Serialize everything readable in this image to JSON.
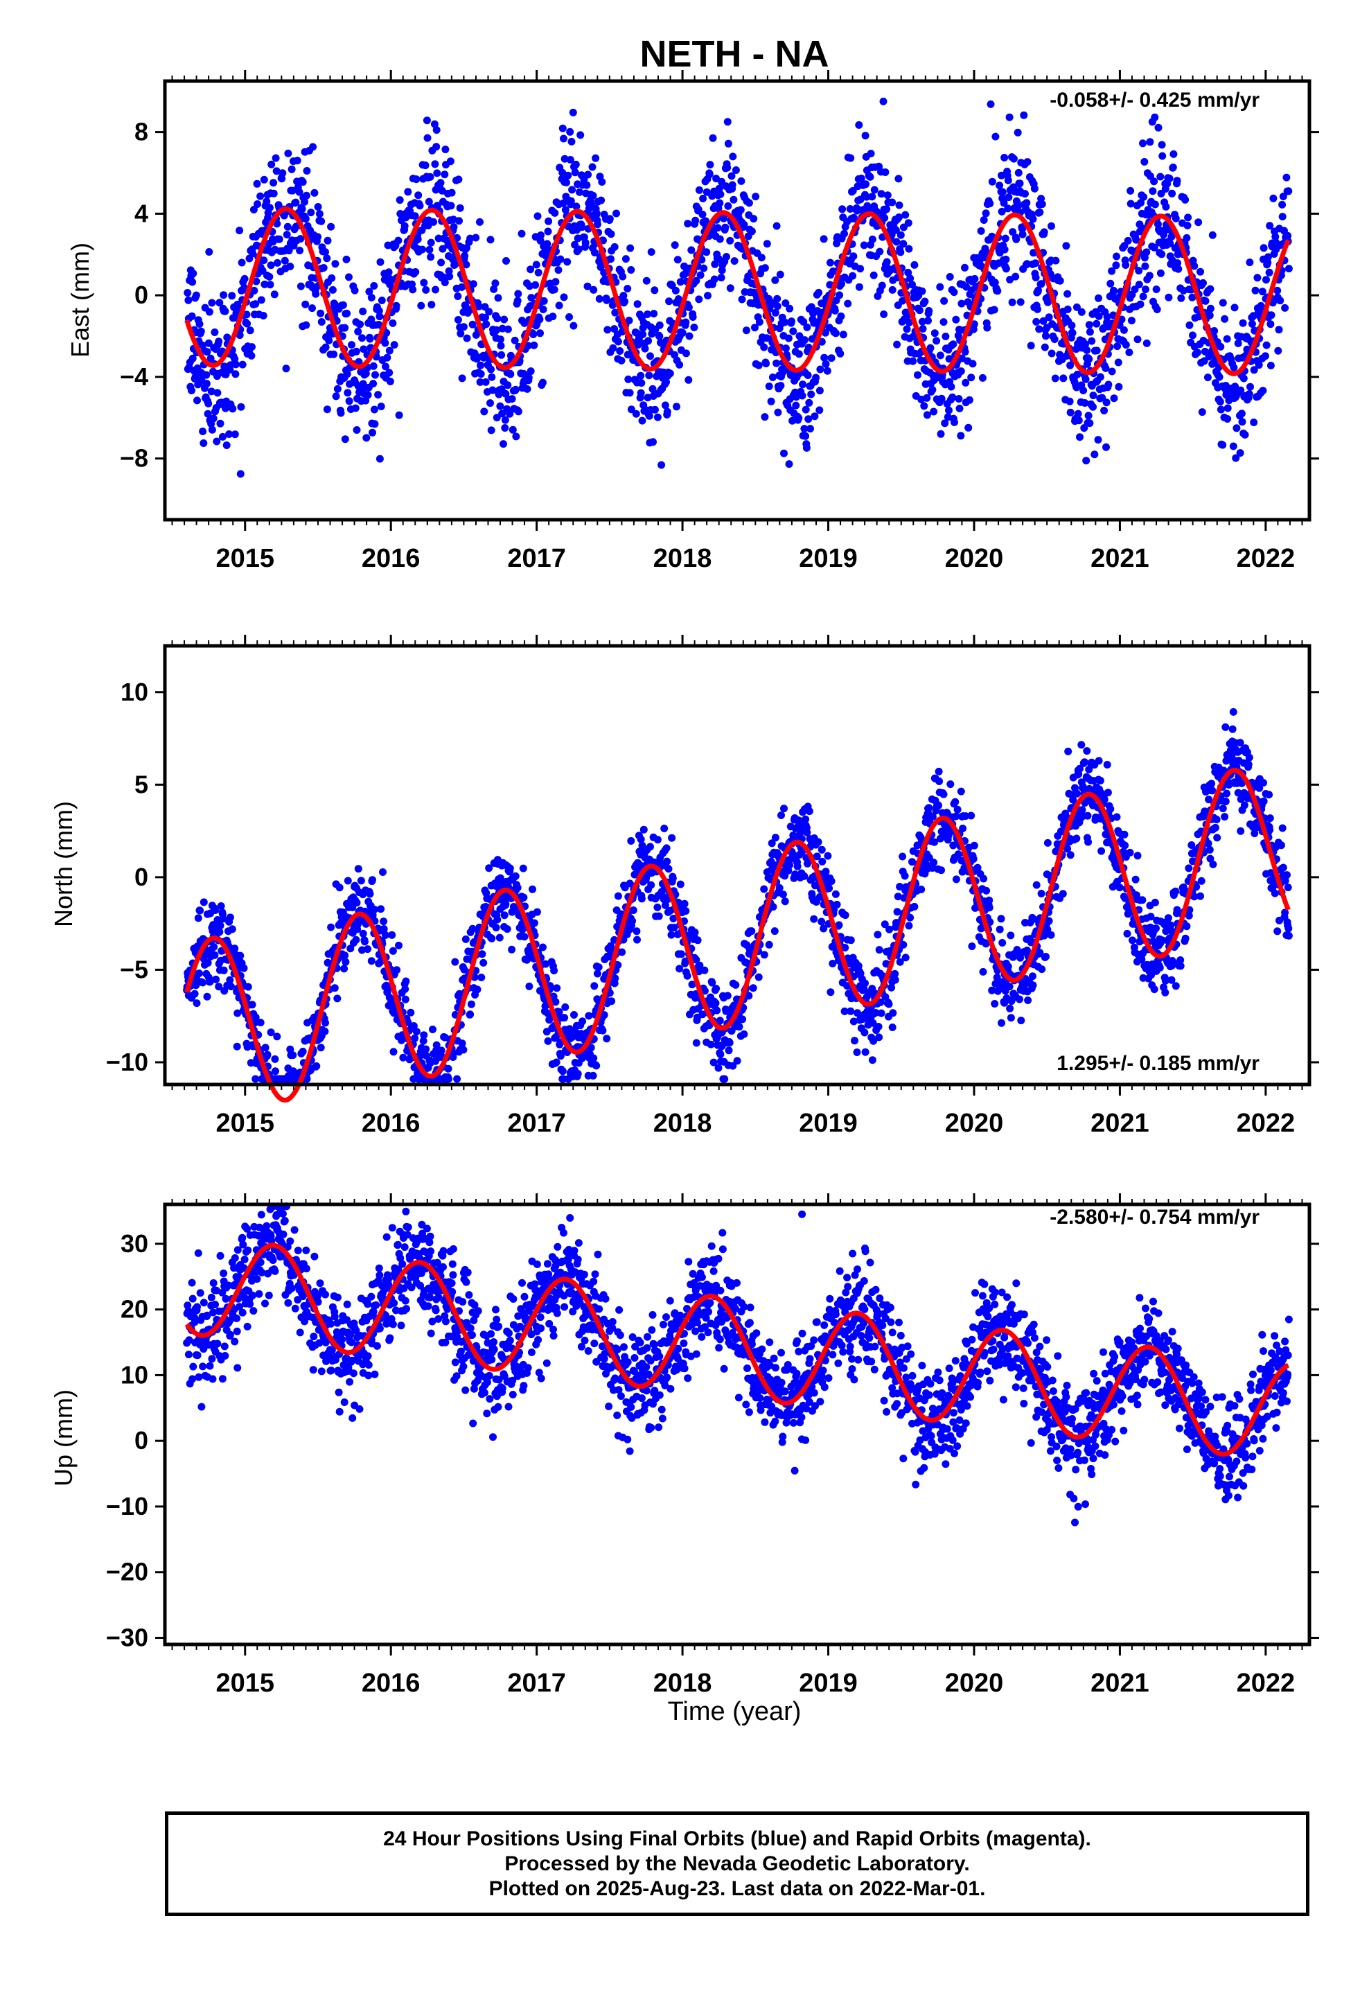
{
  "title": "NETH - NA",
  "chart_data": [
    {
      "type": "scatter",
      "panel": "east",
      "ylabel": "East (mm)",
      "xlim": [
        2014.45,
        2022.3
      ],
      "ylim": [
        -11,
        10.5
      ],
      "yticks": [
        8,
        4,
        0,
        -4,
        -8
      ],
      "ytick_labels": [
        "8",
        "4",
        "0",
        "−4",
        "−8"
      ],
      "xticks": [
        2015,
        2016,
        2017,
        2018,
        2019,
        2020,
        2021,
        2022
      ],
      "xtick_labels": [
        "2015",
        "2016",
        "2017",
        "2018",
        "2019",
        "2020",
        "2021",
        "2022"
      ],
      "rate_label": "-0.058+/- 0.425 mm/yr",
      "rate_position": "top-right",
      "data_range": [
        2014.6,
        2022.16
      ],
      "series": [
        {
          "color": "#0000ff",
          "kind": "daily_positions",
          "amplitude": 4.0,
          "phase": 0.28,
          "trend": -0.058,
          "offset": 0.2,
          "scatter": 1.9
        },
        {
          "color": "#ff0000",
          "kind": "model_fit",
          "amplitude": 3.85,
          "phase": 0.28,
          "trend": -0.058,
          "offset": 0.2
        }
      ]
    },
    {
      "type": "scatter",
      "panel": "north",
      "ylabel": "North (mm)",
      "xlim": [
        2014.45,
        2022.3
      ],
      "ylim": [
        -11.2,
        12.5
      ],
      "yticks": [
        10,
        5,
        0,
        -5,
        -10
      ],
      "ytick_labels": [
        "10",
        "5",
        "0",
        "−5",
        "−10"
      ],
      "xticks": [
        2015,
        2016,
        2017,
        2018,
        2019,
        2020,
        2021,
        2022
      ],
      "xtick_labels": [
        "2015",
        "2016",
        "2017",
        "2018",
        "2019",
        "2020",
        "2021",
        "2022"
      ],
      "rate_label": "1.295+/- 0.185 mm/yr",
      "rate_position": "bottom-right",
      "data_range": [
        2014.6,
        2022.16
      ],
      "series": [
        {
          "color": "#0000ff",
          "kind": "daily_positions",
          "amplitude": 4.7,
          "phase": -0.22,
          "trend": 1.295,
          "offset": -3.3,
          "scatter": 1.2
        },
        {
          "color": "#ff0000",
          "kind": "model_fit",
          "amplitude": 4.7,
          "phase": -0.22,
          "trend": 1.295,
          "offset": -3.3
        }
      ]
    },
    {
      "type": "scatter",
      "panel": "up",
      "ylabel": "Up (mm)",
      "xlabel": "Time (year)",
      "xlim": [
        2014.45,
        2022.3
      ],
      "ylim": [
        -31,
        36
      ],
      "yticks": [
        30,
        20,
        10,
        0,
        -10,
        -20,
        -30
      ],
      "ytick_labels": [
        "30",
        "20",
        "10",
        "0",
        "−10",
        "−20",
        "−30"
      ],
      "xticks": [
        2015,
        2016,
        2017,
        2018,
        2019,
        2020,
        2021,
        2022
      ],
      "xtick_labels": [
        "2015",
        "2016",
        "2017",
        "2018",
        "2019",
        "2020",
        "2021",
        "2022"
      ],
      "rate_label": "-2.580+/- 0.754 mm/yr",
      "rate_position": "top-right",
      "data_range": [
        2014.6,
        2022.16
      ],
      "outliers": [
        [
          2018.82,
          34.5
        ]
      ],
      "series": [
        {
          "color": "#0000ff",
          "kind": "daily_positions",
          "amplitude": 7.5,
          "phase": 0.2,
          "trend": -2.58,
          "offset": 14.0,
          "scatter": 3.8
        },
        {
          "color": "#ff0000",
          "kind": "model_fit",
          "amplitude": 7.5,
          "phase": 0.2,
          "trend": -2.58,
          "offset": 14.0
        }
      ]
    }
  ],
  "caption": {
    "line1": "24 Hour Positions Using Final Orbits (blue) and Rapid Orbits (magenta).",
    "line2": "Processed by the Nevada Geodetic Laboratory.",
    "line3": "Plotted on 2025-Aug-23. Last data on 2022-Mar-01."
  }
}
